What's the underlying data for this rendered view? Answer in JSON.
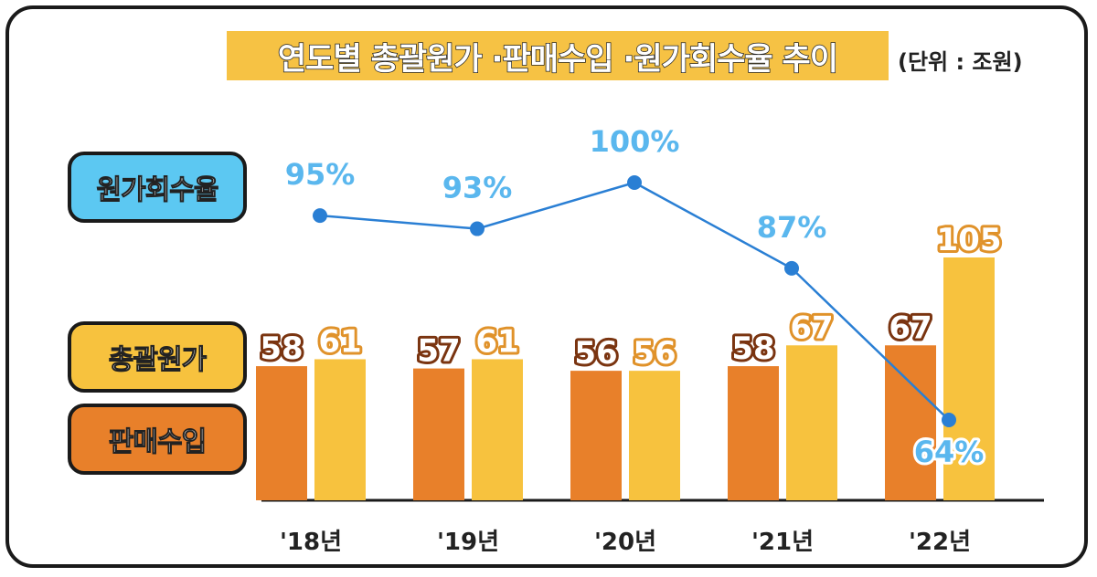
{
  "title": "연도별 총괄원가 ·판매수입 ·원가회수율 추이",
  "unit_note": "(단위 : 조원)",
  "legend": {
    "recovery_label": "원가회수율",
    "cost_label": "총괄원가",
    "revenue_label": "판매수입"
  },
  "colors": {
    "revenue": "#e8802a",
    "cost": "#f7c23e",
    "recovery": "#2a7fd4",
    "recovery_text": "#5ab7ee",
    "legend_recovery_bg": "#5cc8f2",
    "revenue_label": "#7a3410",
    "cost_label": "#e0922a"
  },
  "chart_data": {
    "type": "bar",
    "categories": [
      "'18년",
      "'19년",
      "'20년",
      "'21년",
      "'22년"
    ],
    "series": [
      {
        "name": "판매수입",
        "values": [
          58,
          57,
          56,
          58,
          67
        ]
      },
      {
        "name": "총괄원가",
        "values": [
          61,
          61,
          56,
          67,
          105
        ]
      }
    ],
    "line_series": {
      "name": "원가회수율",
      "values": [
        95,
        93,
        100,
        87,
        64
      ],
      "unit": "%"
    },
    "value_labels": {
      "revenue": [
        "58",
        "57",
        "56",
        "58",
        "67"
      ],
      "cost": [
        "61",
        "61",
        "56",
        "67",
        "105"
      ],
      "recovery": [
        "95%",
        "93%",
        "100%",
        "87%",
        "64%"
      ]
    },
    "ylim": [
      0,
      120
    ],
    "line_ylim": [
      40,
      110
    ],
    "grid": false,
    "legend_placement": "left"
  }
}
